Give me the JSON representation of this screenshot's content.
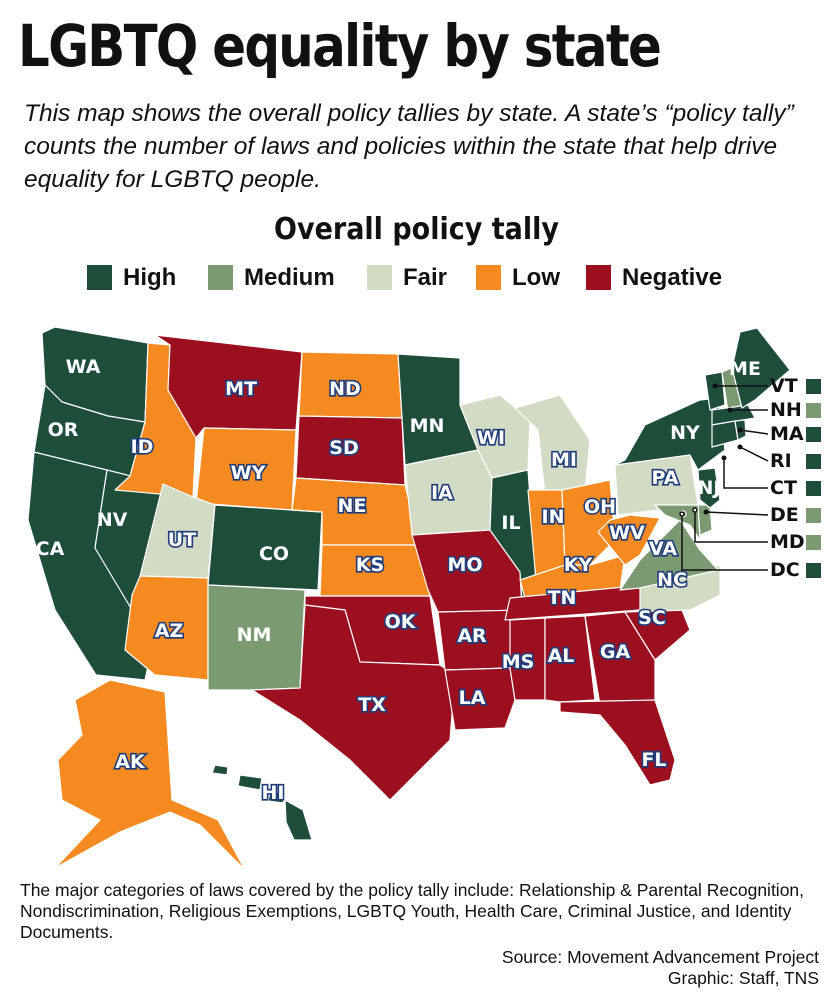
{
  "title": "LGBTQ equality by state",
  "intro": "This map shows the overall policy tallies by state. A state’s “policy tally” counts the number of laws and policies within the state that help drive equality for LGBTQ people.",
  "legend": {
    "title": "Overall policy tally",
    "items": [
      {
        "key": "high",
        "label": "High",
        "color": "#1e4d3a"
      },
      {
        "key": "medium",
        "label": "Medium",
        "color": "#7b9a72"
      },
      {
        "key": "fair",
        "label": "Fair",
        "color": "#d2dbc3"
      },
      {
        "key": "low",
        "label": "Low",
        "color": "#f58a20"
      },
      {
        "key": "negative",
        "label": "Negative",
        "color": "#9b0f1f"
      }
    ]
  },
  "states": [
    {
      "abbr": "WA",
      "tier": "high"
    },
    {
      "abbr": "OR",
      "tier": "high"
    },
    {
      "abbr": "CA",
      "tier": "high"
    },
    {
      "abbr": "NV",
      "tier": "high"
    },
    {
      "abbr": "ID",
      "tier": "low"
    },
    {
      "abbr": "MT",
      "tier": "negative"
    },
    {
      "abbr": "WY",
      "tier": "low"
    },
    {
      "abbr": "UT",
      "tier": "fair"
    },
    {
      "abbr": "AZ",
      "tier": "low"
    },
    {
      "abbr": "CO",
      "tier": "high"
    },
    {
      "abbr": "NM",
      "tier": "medium"
    },
    {
      "abbr": "ND",
      "tier": "low"
    },
    {
      "abbr": "SD",
      "tier": "negative"
    },
    {
      "abbr": "NE",
      "tier": "low"
    },
    {
      "abbr": "KS",
      "tier": "low"
    },
    {
      "abbr": "OK",
      "tier": "negative"
    },
    {
      "abbr": "TX",
      "tier": "negative"
    },
    {
      "abbr": "MN",
      "tier": "high"
    },
    {
      "abbr": "IA",
      "tier": "fair"
    },
    {
      "abbr": "MO",
      "tier": "negative"
    },
    {
      "abbr": "AR",
      "tier": "negative"
    },
    {
      "abbr": "LA",
      "tier": "negative"
    },
    {
      "abbr": "WI",
      "tier": "fair"
    },
    {
      "abbr": "IL",
      "tier": "high"
    },
    {
      "abbr": "MI",
      "tier": "fair"
    },
    {
      "abbr": "IN",
      "tier": "low"
    },
    {
      "abbr": "OH",
      "tier": "low"
    },
    {
      "abbr": "KY",
      "tier": "low"
    },
    {
      "abbr": "TN",
      "tier": "negative"
    },
    {
      "abbr": "MS",
      "tier": "negative"
    },
    {
      "abbr": "AL",
      "tier": "negative"
    },
    {
      "abbr": "GA",
      "tier": "negative"
    },
    {
      "abbr": "FL",
      "tier": "negative"
    },
    {
      "abbr": "SC",
      "tier": "negative"
    },
    {
      "abbr": "NC",
      "tier": "fair"
    },
    {
      "abbr": "VA",
      "tier": "medium"
    },
    {
      "abbr": "WV",
      "tier": "low"
    },
    {
      "abbr": "PA",
      "tier": "fair"
    },
    {
      "abbr": "NY",
      "tier": "high"
    },
    {
      "abbr": "NJ",
      "tier": "high"
    },
    {
      "abbr": "ME",
      "tier": "high"
    },
    {
      "abbr": "AK",
      "tier": "low"
    },
    {
      "abbr": "HI",
      "tier": "high"
    }
  ],
  "northeast_callouts": [
    {
      "abbr": "VT",
      "tier": "high"
    },
    {
      "abbr": "NH",
      "tier": "medium"
    },
    {
      "abbr": "MA",
      "tier": "high"
    },
    {
      "abbr": "RI",
      "tier": "high"
    },
    {
      "abbr": "CT",
      "tier": "high"
    },
    {
      "abbr": "DE",
      "tier": "medium"
    },
    {
      "abbr": "MD",
      "tier": "medium"
    },
    {
      "abbr": "DC",
      "tier": "high"
    }
  ],
  "footnote": "The major categories of laws covered by the policy tally include: Relationship & Parental Recognition, Nondiscrimination, Religious Exemptions, LGBTQ Youth, Health Care, Criminal Justice, and Identity Documents.",
  "source": "Source: Movement Advancement Project",
  "credit": "Graphic: Staff, TNS"
}
